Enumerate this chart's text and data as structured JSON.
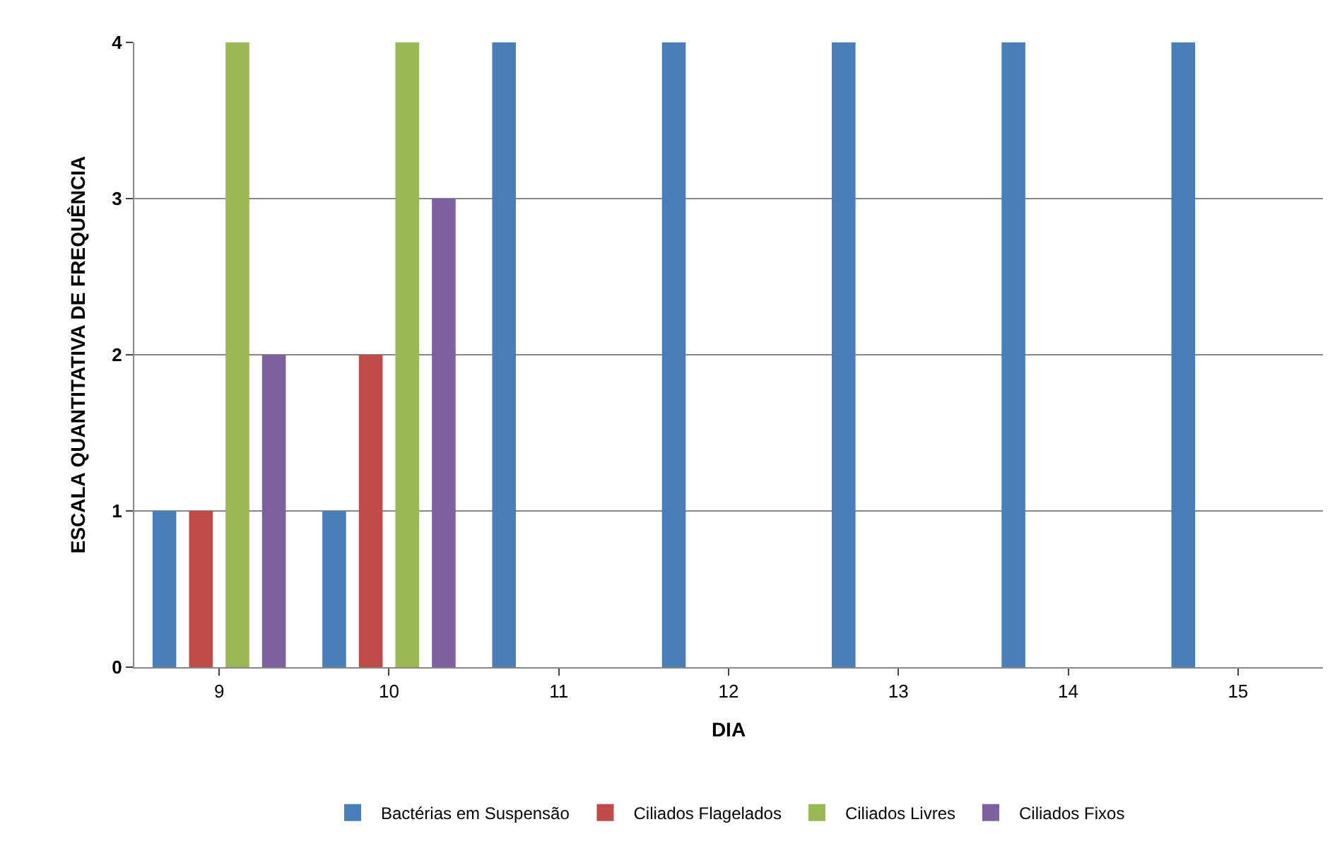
{
  "chart_data": {
    "type": "bar",
    "xlabel": "DIA",
    "ylabel": "ESCALA QUANTITATIVA DE FREQUÊNCIA",
    "categories": [
      "9",
      "10",
      "11",
      "12",
      "13",
      "14",
      "15"
    ],
    "series": [
      {
        "name": "Bactérias em Suspensão",
        "color": "#4a7ebb",
        "values": [
          1,
          1,
          4,
          4,
          4,
          4,
          4
        ]
      },
      {
        "name": "Ciliados Flagelados",
        "color": "#be4b48",
        "values": [
          1,
          2,
          0,
          0,
          0,
          0,
          0
        ]
      },
      {
        "name": "Ciliados Livres",
        "color": "#98b954",
        "values": [
          4,
          4,
          0,
          0,
          0,
          0,
          0
        ]
      },
      {
        "name": "Ciliados Fixos",
        "color": "#7d60a0",
        "values": [
          2,
          3,
          0,
          0,
          0,
          0,
          0
        ]
      }
    ],
    "ylim": [
      0,
      4
    ],
    "yticks": [
      0,
      1,
      2,
      3,
      4
    ],
    "grid": "y",
    "legend": "bottom"
  }
}
